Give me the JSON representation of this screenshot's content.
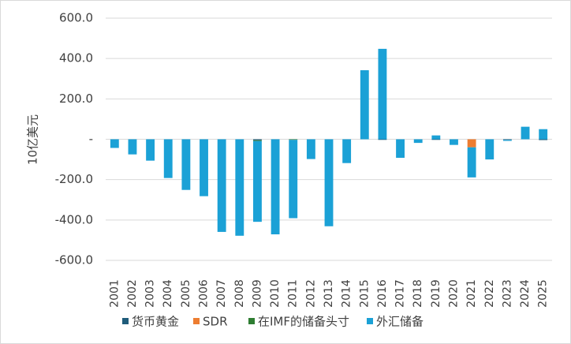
{
  "chart_data": {
    "type": "stacked-bar",
    "y_label": "10亿美元",
    "categories": [
      "2001",
      "2002",
      "2003",
      "2004",
      "2005",
      "2006",
      "2007",
      "2008",
      "2009",
      "2010",
      "2011",
      "2012",
      "2013",
      "2014",
      "2015",
      "2016",
      "2017",
      "2018",
      "2019",
      "2020",
      "2021",
      "2022",
      "2023",
      "2024",
      "2025"
    ],
    "series": [
      {
        "name": "货币黄金",
        "color": "#1f5c7a",
        "values": [
          0,
          0,
          0,
          0,
          0,
          0,
          0,
          0,
          -5,
          0,
          0,
          0,
          0,
          0,
          0,
          -3,
          0,
          0,
          -3,
          0,
          0,
          0,
          -3,
          0,
          -4
        ]
      },
      {
        "name": "SDR",
        "color": "#ed7d31",
        "values": [
          0,
          0,
          0,
          0,
          0,
          0,
          0,
          0,
          0,
          0,
          0,
          0,
          0,
          0,
          0,
          0,
          0,
          0,
          0,
          0,
          -40,
          0,
          0,
          0,
          0
        ]
      },
      {
        "name": "在IMF的储备头寸",
        "color": "#2e7d32",
        "values": [
          0,
          0,
          0,
          0,
          0,
          0,
          0,
          0,
          -4,
          0,
          -3,
          0,
          0,
          0,
          0,
          0,
          0,
          0,
          0,
          0,
          0,
          0,
          0,
          0,
          0
        ]
      },
      {
        "name": "外汇储备",
        "color": "#1ba1d6",
        "values": [
          -43,
          -75,
          -106,
          -192,
          -251,
          -282,
          -459,
          -478,
          -400,
          -471,
          -388,
          -98,
          -431,
          -118,
          342,
          448,
          -92,
          -18,
          19,
          -28,
          -149,
          -100,
          -5,
          62,
          50
        ]
      }
    ],
    "ylim": [
      -600,
      600
    ],
    "yticks": [
      {
        "value": -600,
        "label": "-600.0"
      },
      {
        "value": -400,
        "label": "-400.0"
      },
      {
        "value": -200,
        "label": "-200.0"
      },
      {
        "value": 0,
        "label": "-"
      },
      {
        "value": 200,
        "label": "200.0"
      },
      {
        "value": 400,
        "label": "400.0"
      },
      {
        "value": 600,
        "label": "600.0"
      }
    ],
    "grid": true,
    "legend": "bottom"
  }
}
